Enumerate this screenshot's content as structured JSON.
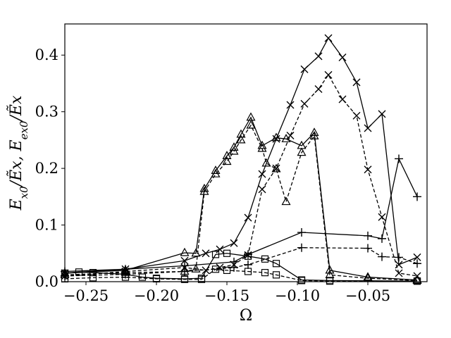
{
  "chart_data": {
    "type": "line",
    "xlabel": "Ω",
    "ylabel": "E_{x0}/Ẽ_x, E_{ex0}/Ẽ_x",
    "xlim": [
      -0.265,
      -0.008
    ],
    "ylim": [
      0,
      0.455
    ],
    "xticks": [
      -0.25,
      -0.2,
      -0.15,
      -0.1,
      -0.05
    ],
    "xtick_labels": [
      "−0.25",
      "−0.20",
      "−0.15",
      "−0.10",
      "−0.05"
    ],
    "yticks": [
      0.0,
      0.1,
      0.2,
      0.3,
      0.4
    ],
    "ytick_labels": [
      "0.0",
      "0.1",
      "0.2",
      "0.3",
      "0.4"
    ],
    "grid": false,
    "series": [
      {
        "marker": "cross",
        "linestyle": "solid",
        "x": [
          -0.265,
          -0.222,
          -0.18,
          -0.165,
          -0.155,
          -0.145,
          -0.135,
          -0.125,
          -0.115,
          -0.105,
          -0.095,
          -0.085,
          -0.078,
          -0.068,
          -0.058,
          -0.05,
          -0.04,
          -0.028,
          -0.015
        ],
        "y": [
          0.015,
          0.022,
          0.037,
          0.05,
          0.057,
          0.068,
          0.113,
          0.19,
          0.252,
          0.312,
          0.375,
          0.398,
          0.43,
          0.396,
          0.352,
          0.271,
          0.296,
          0.03,
          0.043
        ]
      },
      {
        "marker": "cross",
        "linestyle": "dashed",
        "x": [
          -0.265,
          -0.222,
          -0.18,
          -0.165,
          -0.155,
          -0.145,
          -0.135,
          -0.125,
          -0.115,
          -0.105,
          -0.095,
          -0.085,
          -0.078,
          -0.068,
          -0.058,
          -0.05,
          -0.04,
          -0.028,
          -0.015
        ],
        "y": [
          0.01,
          0.018,
          0.025,
          0.02,
          0.025,
          0.03,
          0.047,
          0.163,
          0.2,
          0.258,
          0.314,
          0.34,
          0.365,
          0.322,
          0.293,
          0.198,
          0.114,
          0.015,
          0.01
        ]
      },
      {
        "marker": "triangle",
        "linestyle": "solid",
        "x": [
          -0.265,
          -0.222,
          -0.18,
          -0.172,
          -0.166,
          -0.158,
          -0.15,
          -0.145,
          -0.14,
          -0.133,
          -0.125,
          -0.115,
          -0.108,
          -0.097,
          -0.088,
          -0.077,
          -0.05,
          -0.015
        ],
        "y": [
          0.015,
          0.02,
          0.051,
          0.05,
          0.164,
          0.196,
          0.222,
          0.237,
          0.26,
          0.29,
          0.24,
          0.254,
          0.252,
          0.24,
          0.263,
          0.02,
          0.008,
          0.003
        ]
      },
      {
        "marker": "triangle",
        "linestyle": "dashed",
        "x": [
          -0.265,
          -0.222,
          -0.18,
          -0.172,
          -0.166,
          -0.158,
          -0.15,
          -0.145,
          -0.14,
          -0.133,
          -0.125,
          -0.122,
          -0.115,
          -0.108,
          -0.097,
          -0.088,
          -0.077,
          -0.05,
          -0.015
        ],
        "y": [
          0.012,
          0.016,
          0.018,
          0.022,
          0.159,
          0.19,
          0.212,
          0.23,
          0.25,
          0.276,
          0.235,
          0.209,
          0.199,
          0.141,
          0.228,
          0.257,
          0.012,
          0.006,
          0.002
        ]
      },
      {
        "marker": "plus",
        "linestyle": "solid",
        "x": [
          -0.265,
          -0.222,
          -0.18,
          -0.145,
          -0.135,
          -0.097,
          -0.05,
          -0.04,
          -0.028,
          -0.015
        ],
        "y": [
          0.018,
          0.022,
          0.028,
          0.035,
          0.048,
          0.087,
          0.081,
          0.076,
          0.217,
          0.15
        ]
      },
      {
        "marker": "plus",
        "linestyle": "dashed",
        "x": [
          -0.265,
          -0.222,
          -0.18,
          -0.145,
          -0.135,
          -0.097,
          -0.05,
          -0.04,
          -0.028,
          -0.015
        ],
        "y": [
          0.01,
          0.013,
          0.018,
          0.025,
          0.03,
          0.06,
          0.059,
          0.044,
          0.043,
          0.032
        ]
      },
      {
        "marker": "square",
        "linestyle": "solid",
        "x": [
          -0.265,
          -0.255,
          -0.245,
          -0.222,
          -0.21,
          -0.2,
          -0.18,
          -0.168,
          -0.158,
          -0.15,
          -0.135,
          -0.123,
          -0.115,
          -0.097,
          -0.077,
          -0.015
        ],
        "y": [
          0.015,
          0.017,
          0.016,
          0.013,
          0.008,
          0.006,
          0.005,
          0.006,
          0.048,
          0.05,
          0.045,
          0.04,
          0.032,
          0.003,
          0.002,
          0.001
        ]
      },
      {
        "marker": "square",
        "linestyle": "dashed",
        "x": [
          -0.265,
          -0.245,
          -0.222,
          -0.2,
          -0.18,
          -0.168,
          -0.158,
          -0.15,
          -0.135,
          -0.123,
          -0.115,
          -0.097,
          -0.077,
          -0.015
        ],
        "y": [
          0.005,
          0.007,
          0.008,
          0.005,
          0.004,
          0.004,
          0.022,
          0.02,
          0.018,
          0.016,
          0.012,
          0.002,
          0.001,
          0.001
        ]
      }
    ]
  }
}
